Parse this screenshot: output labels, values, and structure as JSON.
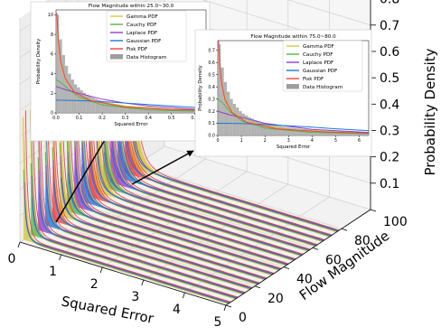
{
  "chart_data": {
    "type": "area",
    "projection": "3d",
    "xlabel": "Squared Error",
    "ylabel": "Flow Magnitude",
    "zlabel": "Probability Density",
    "x_ticks": [
      "0",
      "1",
      "2",
      "3",
      "4",
      "5"
    ],
    "y_ticks": [
      "0",
      "20",
      "40",
      "60",
      "80",
      "100"
    ],
    "z_ticks": [
      "0.1",
      "0.2",
      "0.3",
      "0.4",
      "0.5",
      "0.6",
      "0.7",
      "0.8"
    ],
    "xlim": [
      0,
      5
    ],
    "ylim": [
      0,
      100
    ],
    "zlim": [
      0,
      0.85
    ],
    "grid": true,
    "curve_family_colors": [
      "#d4c542",
      "#57b542",
      "#8e3fd0",
      "#1f77d4",
      "#f2413c",
      "#9e9e9e"
    ],
    "slice_flow_magnitudes": [
      2.5,
      7.5,
      12.5,
      17.5,
      22.5,
      27.5,
      32.5,
      37.5,
      42.5,
      47.5,
      52.5,
      57.5,
      62.5,
      67.5,
      72.5,
      77.5
    ],
    "slice_peak_density": [
      0.82,
      0.8,
      0.78,
      0.76,
      0.74,
      0.72,
      0.7,
      0.68,
      0.66,
      0.64,
      0.62,
      0.6,
      0.58,
      0.56,
      0.54,
      0.52
    ],
    "insets": [
      {
        "title": "Flow Magnitude within 25.0~30.0",
        "xlabel": "Squared Error",
        "ylabel": "Probability Density",
        "x_ticks": [
          "0.0",
          "0.1",
          "0.2",
          "0.3",
          "0.4",
          "0.5",
          "0.6"
        ],
        "y_ticks": [
          "0",
          "2",
          "4",
          "6",
          "8",
          "10"
        ],
        "xlim": [
          0,
          0.65
        ],
        "ylim": [
          0,
          10.5
        ],
        "legend": [
          "Gamma PDF",
          "Cauchy PDF",
          "Laplace PDF",
          "Gaussian PDF",
          "Fisk PDF",
          "Data Histogram"
        ],
        "series": [
          {
            "name": "Gamma PDF",
            "x": [
              0.005,
              0.01,
              0.02,
              0.04,
              0.08,
              0.15,
              0.3,
              0.5,
              0.65
            ],
            "y": [
              9.6,
              7.0,
              5.0,
              3.4,
              2.1,
              1.3,
              0.7,
              0.4,
              0.3
            ]
          },
          {
            "name": "Cauchy PDF",
            "x": [
              0.0,
              0.02,
              0.05,
              0.1,
              0.2,
              0.4,
              0.65
            ],
            "y": [
              3.4,
              3.1,
              2.5,
              1.6,
              0.8,
              0.3,
              0.15
            ]
          },
          {
            "name": "Laplace PDF",
            "x": [
              0.0,
              0.05,
              0.1,
              0.2,
              0.3,
              0.4,
              0.65
            ],
            "y": [
              2.7,
              2.3,
              2.0,
              1.4,
              1.0,
              0.7,
              0.3
            ]
          },
          {
            "name": "Gaussian PDF",
            "x": [
              0.0,
              0.1,
              0.2,
              0.3,
              0.4,
              0.5,
              0.65
            ],
            "y": [
              1.3,
              1.25,
              1.15,
              1.0,
              0.85,
              0.7,
              0.5
            ]
          },
          {
            "name": "Fisk PDF",
            "x": [
              0.003,
              0.01,
              0.02,
              0.04,
              0.08,
              0.15,
              0.3,
              0.5,
              0.65
            ],
            "y": [
              10.2,
              7.4,
              5.3,
              3.5,
              2.1,
              1.25,
              0.6,
              0.35,
              0.25
            ]
          }
        ],
        "histogram": {
          "bin_width": 0.013,
          "values": [
            10.0,
            7.5,
            5.9,
            4.8,
            4.0,
            3.4,
            2.9,
            2.6,
            2.3,
            2.05,
            1.85,
            1.7,
            1.55,
            1.42,
            1.3,
            1.2,
            1.12,
            1.04,
            0.97,
            0.91,
            0.86,
            0.81,
            0.76,
            0.72,
            0.68,
            0.65,
            0.62,
            0.59,
            0.56,
            0.53,
            0.51,
            0.49,
            0.47,
            0.45,
            0.43,
            0.41,
            0.4,
            0.38,
            0.37,
            0.36,
            0.35,
            0.34,
            0.33,
            0.32,
            0.31,
            0.3,
            0.29,
            0.28,
            0.27,
            0.26
          ]
        }
      },
      {
        "title": "Flow Magnitude within 75.0~80.0",
        "xlabel": "Squared Error",
        "ylabel": "Probability Density",
        "x_ticks": [
          "0",
          "1",
          "2",
          "3",
          "4",
          "5",
          "6"
        ],
        "y_ticks": [
          "0.0",
          "0.1",
          "0.2",
          "0.3",
          "0.4",
          "0.5",
          "0.6",
          "0.7"
        ],
        "xlim": [
          0,
          6.4
        ],
        "ylim": [
          0,
          0.78
        ],
        "legend": [
          "Gamma PDF",
          "Cauchy PDF",
          "Laplace PDF",
          "Gaussian PDF",
          "Fisk PDF",
          "Data Histogram"
        ],
        "series": [
          {
            "name": "Gamma PDF",
            "x": [
              0.05,
              0.1,
              0.2,
              0.4,
              0.8,
              1.5,
              3.0,
              5.0,
              6.4
            ],
            "y": [
              0.72,
              0.55,
              0.4,
              0.27,
              0.17,
              0.1,
              0.05,
              0.03,
              0.02
            ]
          },
          {
            "name": "Cauchy PDF",
            "x": [
              0.0,
              0.2,
              0.5,
              1.0,
              2.0,
              4.0,
              6.4
            ],
            "y": [
              0.3,
              0.27,
              0.2,
              0.12,
              0.06,
              0.025,
              0.015
            ]
          },
          {
            "name": "Laplace PDF",
            "x": [
              0.0,
              0.5,
              1.0,
              2.0,
              3.0,
              4.0,
              6.4
            ],
            "y": [
              0.2,
              0.17,
              0.15,
              0.1,
              0.075,
              0.05,
              0.025
            ]
          },
          {
            "name": "Gaussian PDF",
            "x": [
              0.0,
              1.0,
              2.0,
              3.0,
              4.0,
              5.0,
              6.4
            ],
            "y": [
              0.1,
              0.098,
              0.09,
              0.08,
              0.068,
              0.055,
              0.04
            ]
          },
          {
            "name": "Fisk PDF",
            "x": [
              0.03,
              0.08,
              0.15,
              0.3,
              0.6,
              1.2,
              2.5,
              4.5,
              6.4
            ],
            "y": [
              0.78,
              0.6,
              0.45,
              0.3,
              0.19,
              0.11,
              0.055,
              0.03,
              0.02
            ]
          }
        ],
        "histogram": {
          "bin_width": 0.128,
          "values": [
            0.75,
            0.56,
            0.44,
            0.36,
            0.3,
            0.26,
            0.23,
            0.2,
            0.18,
            0.165,
            0.15,
            0.138,
            0.127,
            0.118,
            0.11,
            0.103,
            0.097,
            0.091,
            0.086,
            0.081,
            0.077,
            0.073,
            0.069,
            0.066,
            0.063,
            0.06,
            0.057,
            0.055,
            0.053,
            0.051,
            0.049,
            0.047,
            0.045,
            0.043,
            0.042,
            0.04,
            0.039,
            0.037,
            0.036,
            0.035,
            0.034,
            0.033,
            0.032,
            0.031,
            0.03,
            0.029,
            0.028,
            0.027,
            0.026,
            0.025
          ]
        }
      }
    ]
  }
}
